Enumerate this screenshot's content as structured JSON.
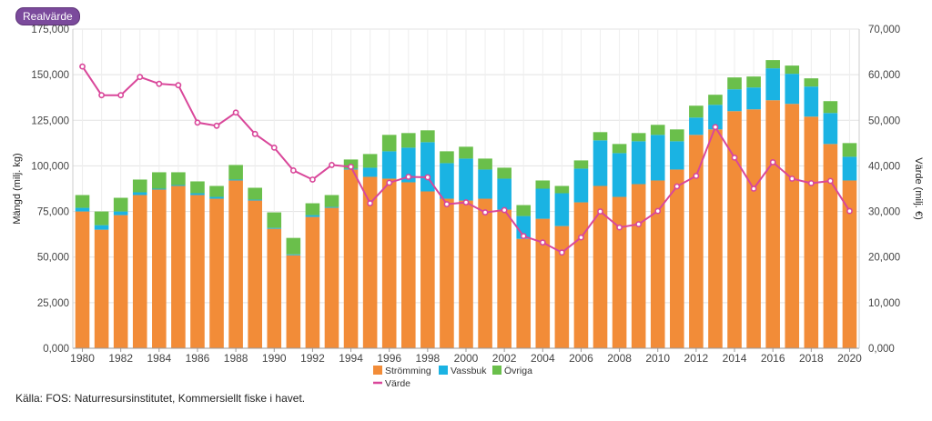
{
  "badge": "Realvärde",
  "source": "Källa: FOS: Naturresursinstitutet, Kommersiellt fiske i havet.",
  "colors": {
    "stromming": "#f28c38",
    "vassbuk": "#1ab3e3",
    "ovriga": "#6abf4b",
    "varde": "#d9479a"
  },
  "chart_data": {
    "type": "bar",
    "stacked": true,
    "ylabel": "Mängd (milj. kg)",
    "y2label": "Värde (milj. €)",
    "ylim": [
      0,
      175000
    ],
    "y2lim": [
      0,
      70000
    ],
    "yticks": [
      "0,000",
      "25,000",
      "50,000",
      "75,000",
      "100,000",
      "125,000",
      "150,000",
      "175,000"
    ],
    "y2ticks": [
      "0,000",
      "10,000",
      "20,000",
      "30,000",
      "40,000",
      "50,000",
      "60,000",
      "70,000"
    ],
    "xtick_labels": [
      "1980",
      "1982",
      "1984",
      "1986",
      "1988",
      "1990",
      "1992",
      "1994",
      "1996",
      "1998",
      "2000",
      "2002",
      "2004",
      "2006",
      "2008",
      "2010",
      "2012",
      "2014",
      "2016",
      "2018",
      "2020"
    ],
    "grid": true,
    "legend_position": "bottom",
    "categories": [
      1980,
      1981,
      1982,
      1983,
      1984,
      1985,
      1986,
      1987,
      1988,
      1989,
      1990,
      1991,
      1992,
      1993,
      1994,
      1995,
      1996,
      1997,
      1998,
      1999,
      2000,
      2001,
      2002,
      2003,
      2004,
      2005,
      2006,
      2007,
      2008,
      2009,
      2010,
      2011,
      2012,
      2013,
      2014,
      2015,
      2016,
      2017,
      2018,
      2019,
      2020
    ],
    "series": [
      {
        "name": "Strömming",
        "axis": "left",
        "kind": "bar",
        "values": [
          75000,
          65000,
          73000,
          84000,
          87000,
          89000,
          84000,
          82000,
          92000,
          81000,
          65500,
          51000,
          72000,
          77000,
          98000,
          94000,
          93000,
          91000,
          86000,
          82000,
          81000,
          82000,
          76000,
          60000,
          71000,
          67000,
          80000,
          89000,
          83000,
          90000,
          92000,
          98000,
          117000,
          120000,
          130000,
          131000,
          136000,
          134000,
          127000,
          112000,
          92000
        ]
      },
      {
        "name": "Vassbuk",
        "axis": "left",
        "kind": "bar",
        "values": [
          2000,
          2500,
          2000,
          1500,
          500,
          500,
          1000,
          1000,
          500,
          500,
          500,
          500,
          1000,
          500,
          500,
          5000,
          15000,
          19000,
          27000,
          19500,
          23000,
          16000,
          17000,
          12500,
          16500,
          18000,
          18500,
          25000,
          24000,
          23500,
          25000,
          15500,
          9500,
          13500,
          12000,
          12000,
          17500,
          16500,
          16500,
          17000,
          13000
        ]
      },
      {
        "name": "Övriga",
        "axis": "left",
        "kind": "bar",
        "values": [
          7000,
          7500,
          7500,
          7000,
          9000,
          7000,
          6500,
          6000,
          8000,
          6500,
          8500,
          9000,
          6500,
          6500,
          5000,
          7500,
          9000,
          8000,
          6500,
          6500,
          6500,
          6000,
          6000,
          6000,
          4500,
          4000,
          4500,
          4500,
          5000,
          4500,
          5500,
          6500,
          6500,
          5500,
          6500,
          6000,
          4500,
          4500,
          4500,
          6500,
          7500
        ]
      },
      {
        "name": "Värde",
        "axis": "right",
        "kind": "line",
        "values": [
          61800,
          55500,
          55500,
          59500,
          58000,
          57700,
          49500,
          48800,
          51700,
          47000,
          44000,
          39000,
          37000,
          40200,
          39800,
          31800,
          36300,
          37600,
          37500,
          31600,
          32000,
          29800,
          30300,
          24600,
          23200,
          21000,
          24300,
          30000,
          26500,
          27200,
          30100,
          35500,
          37800,
          48500,
          41800,
          35000,
          40800,
          37200,
          36200,
          36700,
          30100
        ]
      }
    ]
  }
}
